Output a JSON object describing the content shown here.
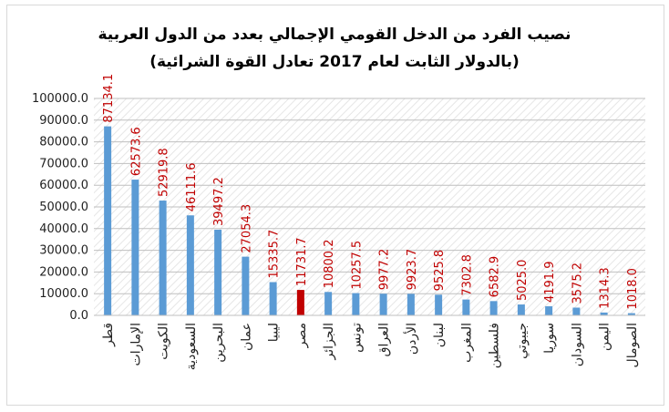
{
  "chart_data": {
    "type": "bar",
    "title": "نصيب الفرد من الدخل القومي الإجمالي بعدد من الدول العربية",
    "subtitle": "(بالدولار الثابت لعام 2017 تعادل القوة الشرائية)",
    "xlabel": "",
    "ylabel": "",
    "ylim": [
      0,
      100000
    ],
    "yticks": [
      "0.0",
      "10000.0",
      "20000.0",
      "30000.0",
      "40000.0",
      "50000.0",
      "60000.0",
      "70000.0",
      "80000.0",
      "90000.0",
      "100000.0"
    ],
    "grid": true,
    "categories": [
      "قطر",
      "الإمارات",
      "الكويت",
      "السعودية",
      "البحرين",
      "عمان",
      "ليبيا",
      "مصر",
      "الجزائر",
      "تونس",
      "العراق",
      "الأردن",
      "لبنان",
      "المغرب",
      "فلسطين",
      "جيبوتي",
      "سوريا",
      "السودان",
      "اليمن",
      "الصومال"
    ],
    "values": [
      87134.1,
      62573.6,
      52919.8,
      46111.6,
      39497.2,
      27054.3,
      15335.7,
      11731.7,
      10800.2,
      10257.5,
      9977.2,
      9923.7,
      9525.8,
      7302.8,
      6582.9,
      5025.0,
      4191.9,
      3575.2,
      1314.3,
      1018.0
    ],
    "value_labels": [
      "87134.1",
      "62573.6",
      "52919.8",
      "46111.6",
      "39497.2",
      "27054.3",
      "15335.7",
      "11731.7",
      "10800.2",
      "10257.5",
      "9977.2",
      "9923.7",
      "9525.8",
      "7302.8",
      "6582.9",
      "5025.0",
      "4191.9",
      "3575.2",
      "1314.3",
      "1018.0"
    ],
    "highlight_index": 7,
    "colors": {
      "bar": "#5b9bd5",
      "highlight": "#c00000",
      "label": "#c00000",
      "grid": "#bfbfbf"
    }
  }
}
